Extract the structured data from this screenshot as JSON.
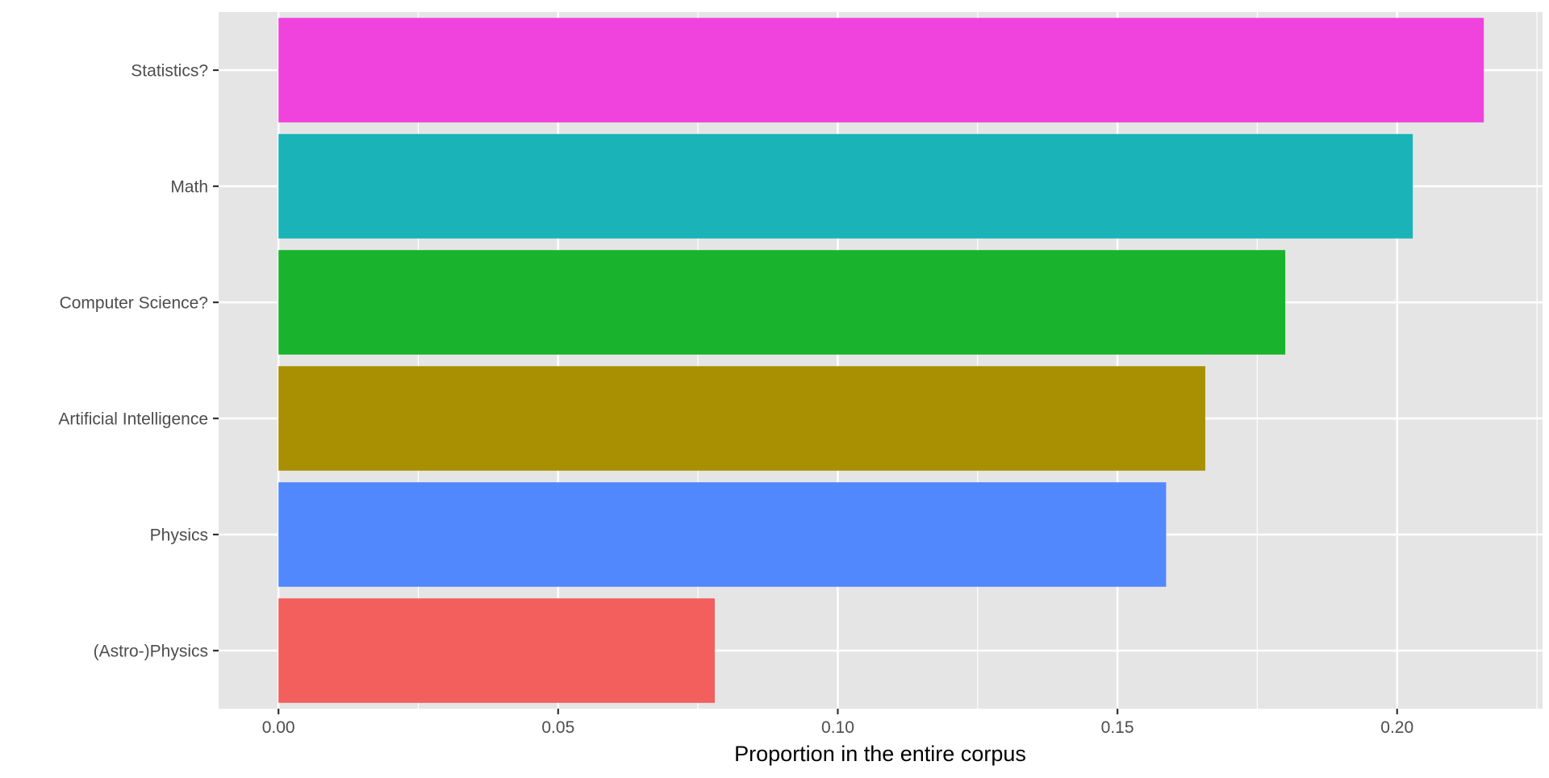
{
  "chart_data": {
    "type": "bar",
    "orientation": "horizontal",
    "categories": [
      "Statistics?",
      "Math",
      "Computer Science?",
      "Artificial Intelligence",
      "Physics",
      "(Astro-)Physics"
    ],
    "values": [
      0.2155,
      0.2028,
      0.18,
      0.1657,
      0.1587,
      0.078
    ],
    "colors": [
      "#F042DC",
      "#1AB4B8",
      "#1AB32E",
      "#A89002",
      "#5288FE",
      "#F25F5D"
    ],
    "title": "",
    "xlabel": "Proportion in the entire corpus",
    "ylabel": "",
    "xlim": [
      -0.0107,
      0.226
    ],
    "x_ticks": [
      0.0,
      0.05,
      0.1,
      0.15,
      0.2
    ],
    "x_tick_labels": [
      "0.00",
      "0.05",
      "0.10",
      "0.15",
      "0.20"
    ],
    "grid": true,
    "legend": "none",
    "panel_background": "#E5E5E5",
    "grid_color": "#FFFFFF"
  }
}
